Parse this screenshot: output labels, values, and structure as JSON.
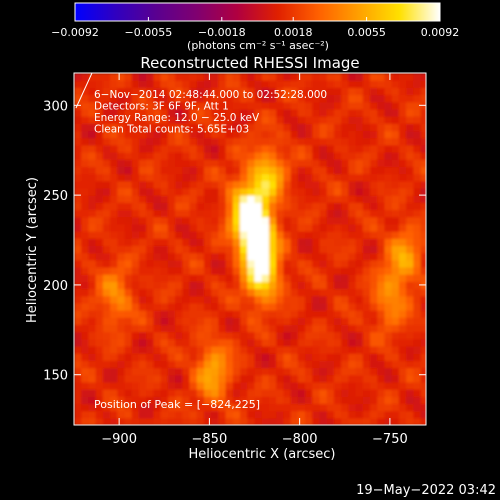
{
  "chart_data": {
    "type": "heatmap",
    "title": "Reconstructed RHESSI Image",
    "xlabel": "Heliocentric X (arcsec)",
    "ylabel": "Heliocentric Y (arcsec)",
    "xlim": [
      -925,
      -730
    ],
    "ylim": [
      122,
      318
    ],
    "x_ticks": [
      -900,
      -850,
      -800,
      -750
    ],
    "x_tick_labels": [
      "−900",
      "−850",
      "−800",
      "−750"
    ],
    "y_ticks": [
      150,
      200,
      250,
      300
    ],
    "y_tick_labels": [
      "150",
      "200",
      "250",
      "300"
    ],
    "colorbar": {
      "range": [
        -0.0092,
        0.0092
      ],
      "ticks": [
        -0.0092,
        -0.0055,
        -0.0018,
        0.0018,
        0.0055,
        0.0092
      ],
      "tick_labels": [
        "−0.0092",
        "−0.0055",
        "−0.0018",
        "0.0018",
        "0.0055",
        "0.0092"
      ],
      "units_label": "(photons cm⁻² s⁻¹ asec⁻²)",
      "colormap": [
        "#0000ff",
        "#3000c0",
        "#5a0090",
        "#800070",
        "#b00040",
        "#e02000",
        "#ff6000",
        "#ffa000",
        "#ffe000",
        "#ffffff"
      ]
    },
    "annotations": [
      "6−Nov−2014 02:48:44.000 to 02:52:28.000",
      "Detectors: 3F 6F 9F, Att 1",
      "Energy Range: 12.0 − 25.0 keV",
      "Clean    Total counts: 5.65E+03"
    ],
    "peak_label": "Position of Peak = [−824,225]",
    "peak_position": [
      -824,
      225
    ],
    "sources": [
      {
        "x": -826,
        "y": 227,
        "value": 0.0092
      },
      {
        "x": -823,
        "y": 206,
        "value": 0.0075
      },
      {
        "x": -820,
        "y": 258,
        "value": 0.005
      },
      {
        "x": -832,
        "y": 240,
        "value": 0.006
      },
      {
        "x": -850,
        "y": 150,
        "value": 0.004
      },
      {
        "x": -904,
        "y": 192,
        "value": 0.003
      },
      {
        "x": -744,
        "y": 214,
        "value": 0.0035
      },
      {
        "x": -752,
        "y": 190,
        "value": 0.003
      }
    ],
    "grid": false
  },
  "footer_timestamp": "19−May−2022 03:42"
}
